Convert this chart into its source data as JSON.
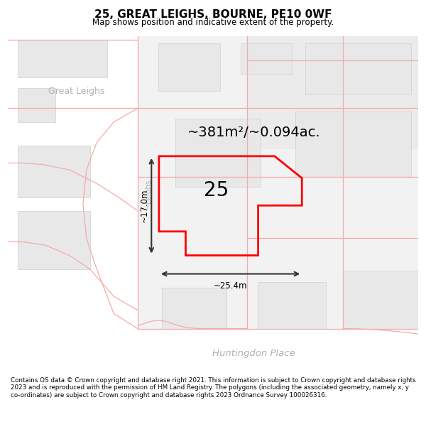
{
  "title": "25, GREAT LEIGHS, BOURNE, PE10 0WF",
  "subtitle": "Map shows position and indicative extent of the property.",
  "footer": "Contains OS data © Crown copyright and database right 2021. This information is subject to Crown copyright and database rights 2023 and is reproduced with the permission of HM Land Registry. The polygons (including the associated geometry, namely x, y co-ordinates) are subject to Crown copyright and database rights 2023 Ordnance Survey 100026316.",
  "area_text": "~381m²/~0.094ac.",
  "width_text": "~25.4m",
  "height_text": "~17.0m",
  "house_number": "25",
  "street_label_bottom": "Huntingdon Place",
  "street_label_center": "Great Leighs",
  "street_label_left_vert": "~17.0m",
  "bg_color": "#f2f2f2",
  "road_color": "#ffffff",
  "building_color": "#e8e8e8",
  "boundary_color": "#ff0000",
  "dim_color": "#333333",
  "road_outline": "#f5aaaa",
  "text_gray": "#b0b0b0"
}
